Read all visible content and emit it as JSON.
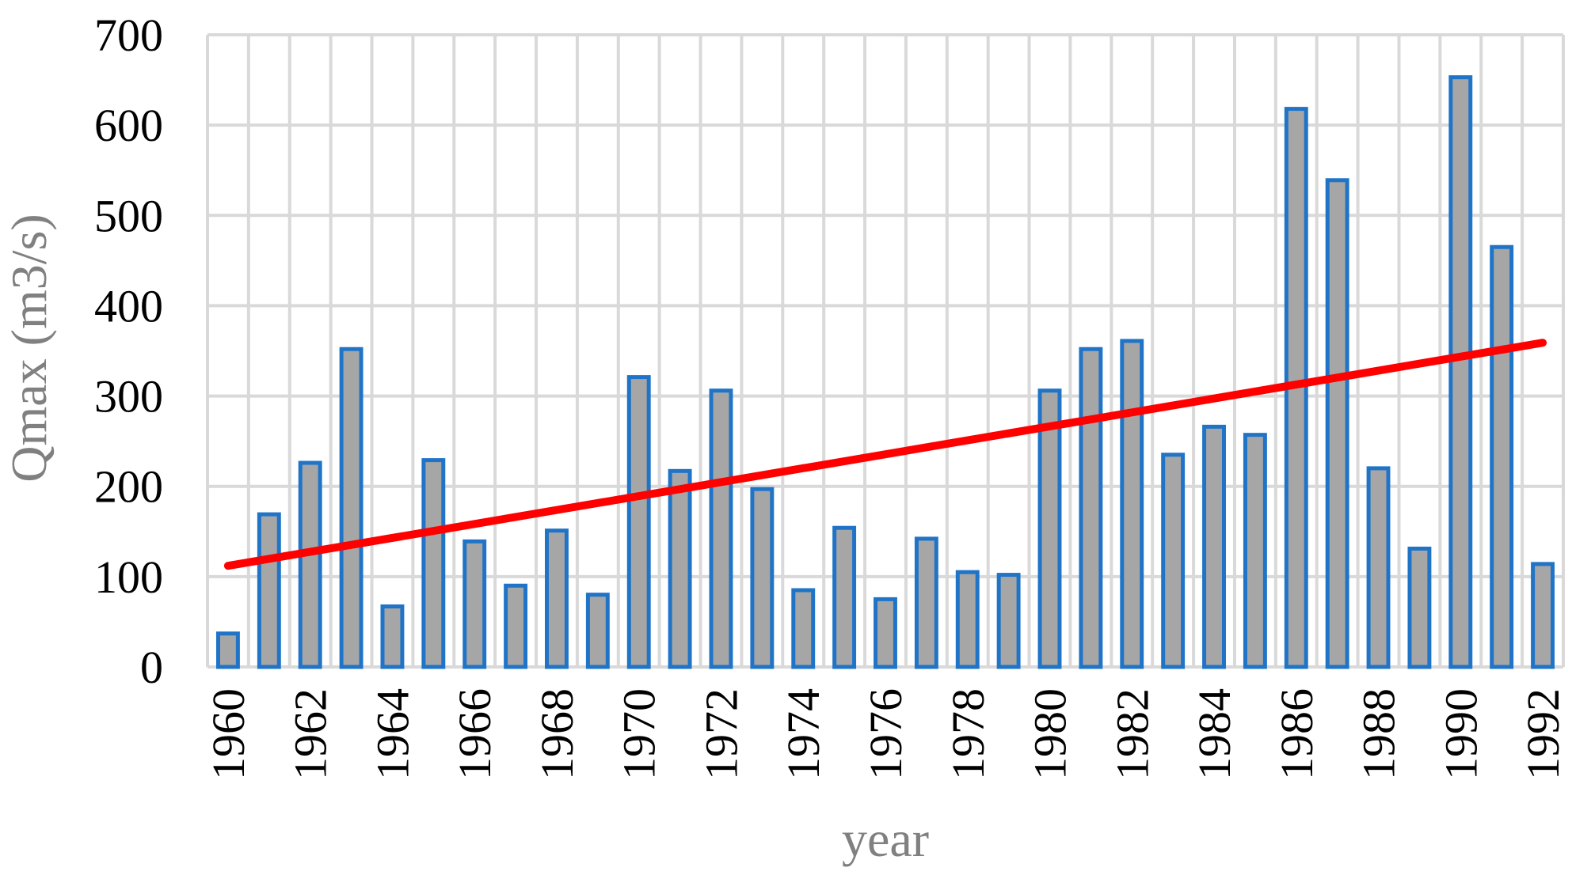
{
  "chart_data": {
    "type": "bar",
    "x": [
      1960,
      1961,
      1962,
      1963,
      1964,
      1965,
      1966,
      1967,
      1968,
      1969,
      1970,
      1971,
      1972,
      1973,
      1974,
      1975,
      1976,
      1977,
      1978,
      1979,
      1980,
      1981,
      1982,
      1983,
      1984,
      1985,
      1986,
      1987,
      1988,
      1989,
      1990,
      1991,
      1992
    ],
    "xtick_labels": [
      "1960",
      "1962",
      "1964",
      "1966",
      "1968",
      "1970",
      "1972",
      "1974",
      "1976",
      "1978",
      "1980",
      "1982",
      "1984",
      "1986",
      "1988",
      "1990",
      "1992"
    ],
    "values": [
      37,
      169,
      226,
      352,
      67,
      229,
      139,
      90,
      151,
      80,
      321,
      217,
      306,
      197,
      85,
      154,
      75,
      142,
      105,
      102,
      306,
      352,
      361,
      235,
      266,
      257,
      618,
      539,
      220,
      131,
      653,
      465,
      114
    ],
    "yticks": [
      0,
      100,
      200,
      300,
      400,
      500,
      600,
      700
    ],
    "ylim": [
      0,
      700
    ],
    "xlabel": "year",
    "ylabel": "Qmax (m3/s)",
    "grid": true,
    "trendline": {
      "start": [
        1960,
        112
      ],
      "end": [
        1992,
        359
      ]
    },
    "colors": {
      "bar_fill": "#a6a6a6",
      "bar_edge": "#1f74c8",
      "trend": "#ff0000",
      "grid": "#d9d9d9",
      "axis_title": "#808080"
    }
  }
}
